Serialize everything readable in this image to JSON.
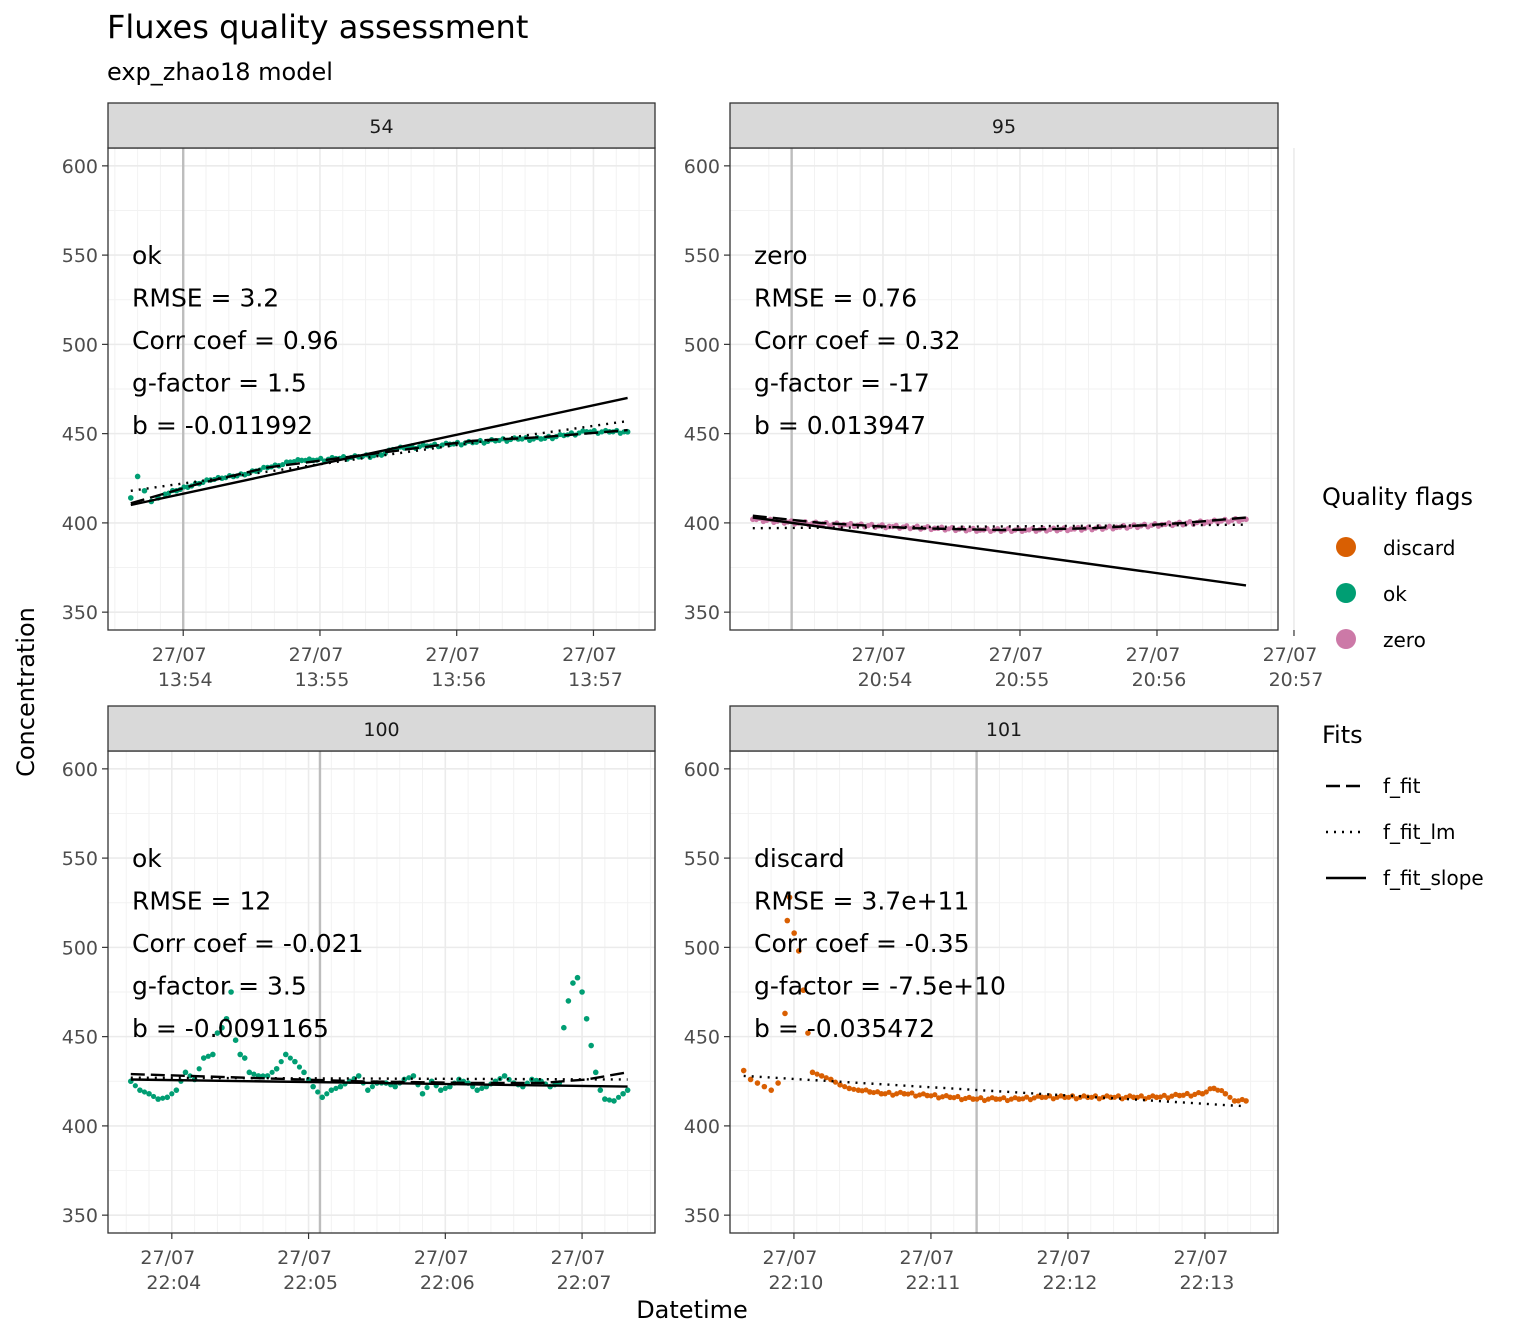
{
  "title": "Fluxes quality assessment",
  "subtitle": "exp_zhao18 model",
  "colors": {
    "discard": "#D95F02",
    "ok": "#009E73",
    "zero": "#CC79A7"
  },
  "legend": {
    "quality_title": "Quality flags",
    "quality_items": [
      "discard",
      "ok",
      "zero"
    ],
    "fits_title": "Fits",
    "fits_items": [
      {
        "label": "f_fit",
        "style": "dashed"
      },
      {
        "label": "f_fit_lm",
        "style": "dotted"
      },
      {
        "label": "f_fit_slope",
        "style": "solid"
      }
    ]
  },
  "chart_data": {
    "type": "scatter",
    "title": "Fluxes quality assessment",
    "subtitle": "exp_zhao18 model",
    "xlabel": "Datetime",
    "ylabel": "Concentration",
    "ylim": [
      340,
      610
    ],
    "yticks": [
      350,
      400,
      450,
      500,
      550,
      600
    ],
    "grid": true,
    "legend_position": "right",
    "panels": [
      {
        "strip": "54",
        "flag": "ok",
        "stats": [
          "ok",
          "RMSE = 3.2",
          "Corr coef = 0.96",
          "g-factor = 1.5",
          "b = -0.011992"
        ],
        "xlim": [
          "13:53:27",
          "13:57:27"
        ],
        "x_ticks": [
          [
            "27/07",
            "13:54"
          ],
          [
            "27/07",
            "13:55"
          ],
          [
            "27/07",
            "13:56"
          ],
          [
            "27/07",
            "13:57"
          ]
        ],
        "x_tick_times": [
          "13:54:00",
          "13:55:00",
          "13:56:00",
          "13:57:00"
        ],
        "start_marker": "13:54:00",
        "x_start": "13:53:37",
        "x_end": "13:57:15",
        "points": [
          [
            0,
            414
          ],
          [
            3,
            426
          ],
          [
            6,
            418
          ],
          [
            9,
            412
          ],
          [
            12,
            414
          ],
          [
            15,
            416
          ],
          [
            20,
            418
          ],
          [
            25,
            420
          ],
          [
            30,
            422
          ],
          [
            35,
            424
          ],
          [
            40,
            425
          ],
          [
            45,
            426
          ],
          [
            50,
            427
          ],
          [
            55,
            429
          ],
          [
            60,
            431
          ],
          [
            65,
            432
          ],
          [
            70,
            434
          ],
          [
            75,
            435
          ],
          [
            80,
            435
          ],
          [
            90,
            436
          ],
          [
            100,
            437
          ],
          [
            110,
            438
          ],
          [
            115,
            441
          ],
          [
            120,
            442
          ],
          [
            130,
            443
          ],
          [
            140,
            444
          ],
          [
            150,
            445
          ],
          [
            160,
            446
          ],
          [
            170,
            447
          ],
          [
            180,
            447
          ],
          [
            190,
            449
          ],
          [
            200,
            451
          ],
          [
            210,
            451
          ],
          [
            218,
            451
          ]
        ],
        "f_fit": [
          [
            0,
            411
          ],
          [
            30,
            422
          ],
          [
            60,
            431
          ],
          [
            90,
            436
          ],
          [
            120,
            441
          ],
          [
            150,
            446
          ],
          [
            180,
            448
          ],
          [
            218,
            452
          ]
        ],
        "f_fit_lm": [
          [
            0,
            418
          ],
          [
            218,
            457
          ]
        ],
        "f_fit_slope": [
          [
            0,
            410
          ],
          [
            218,
            470
          ]
        ]
      },
      {
        "strip": "95",
        "flag": "zero",
        "stats": [
          "zero",
          "RMSE = 0.76",
          "Corr coef = 0.32",
          "g-factor = -17",
          "b = 0.013947"
        ],
        "xlim": [
          "20:52:53",
          "20:56:53"
        ],
        "x_ticks": [
          [
            "27/07",
            "20:54"
          ],
          [
            "27/07",
            "20:55"
          ],
          [
            "27/07",
            "20:56"
          ],
          [
            "27/07",
            "20:57"
          ]
        ],
        "x_tick_times": [
          "20:54:00",
          "20:55:00",
          "20:56:00",
          "20:57:00"
        ],
        "start_marker": "20:53:20",
        "x_start": "20:53:03",
        "x_end": "20:56:40",
        "points": [
          [
            0,
            402
          ],
          [
            20,
            400
          ],
          [
            40,
            399
          ],
          [
            60,
            398
          ],
          [
            80,
            397
          ],
          [
            100,
            396
          ],
          [
            120,
            396
          ],
          [
            140,
            396.5
          ],
          [
            160,
            397.5
          ],
          [
            180,
            399
          ],
          [
            200,
            400.5
          ],
          [
            217,
            402
          ]
        ],
        "f_fit": [
          [
            0,
            404
          ],
          [
            30,
            400
          ],
          [
            70,
            397
          ],
          [
            110,
            396
          ],
          [
            150,
            397
          ],
          [
            190,
            400
          ],
          [
            217,
            403
          ]
        ],
        "f_fit_lm": [
          [
            0,
            397
          ],
          [
            217,
            399
          ]
        ],
        "f_fit_slope": [
          [
            0,
            403
          ],
          [
            217,
            365
          ]
        ]
      },
      {
        "strip": "100",
        "flag": "ok",
        "stats": [
          "ok",
          "RMSE = 12",
          "Corr coef = -0.021",
          "g-factor = 3.5",
          "b = -0.0091165"
        ],
        "xlim": [
          "22:03:32",
          "22:07:32"
        ],
        "x_ticks": [
          [
            "27/07",
            "22:04"
          ],
          [
            "27/07",
            "22:05"
          ],
          [
            "27/07",
            "22:06"
          ],
          [
            "27/07",
            "22:07"
          ]
        ],
        "x_tick_times": [
          "22:04:00",
          "22:05:00",
          "22:06:00",
          "22:07:00"
        ],
        "start_marker": "22:05:05",
        "x_start": "22:03:42",
        "x_end": "22:07:20",
        "points": [
          [
            0,
            425
          ],
          [
            4,
            420
          ],
          [
            8,
            418
          ],
          [
            12,
            415
          ],
          [
            16,
            416
          ],
          [
            20,
            420
          ],
          [
            24,
            430
          ],
          [
            28,
            426
          ],
          [
            32,
            438
          ],
          [
            36,
            440
          ],
          [
            38,
            452
          ],
          [
            40,
            455
          ],
          [
            42,
            460
          ],
          [
            44,
            475
          ],
          [
            46,
            448
          ],
          [
            48,
            440
          ],
          [
            50,
            438
          ],
          [
            52,
            430
          ],
          [
            56,
            428
          ],
          [
            60,
            428
          ],
          [
            64,
            432
          ],
          [
            68,
            440
          ],
          [
            72,
            436
          ],
          [
            76,
            430
          ],
          [
            80,
            422
          ],
          [
            84,
            416
          ],
          [
            88,
            420
          ],
          [
            92,
            422
          ],
          [
            96,
            425
          ],
          [
            100,
            428
          ],
          [
            104,
            420
          ],
          [
            108,
            424
          ],
          [
            112,
            424
          ],
          [
            116,
            422
          ],
          [
            120,
            426
          ],
          [
            124,
            428
          ],
          [
            128,
            418
          ],
          [
            132,
            425
          ],
          [
            136,
            420
          ],
          [
            140,
            422
          ],
          [
            144,
            426
          ],
          [
            148,
            424
          ],
          [
            152,
            420
          ],
          [
            156,
            422
          ],
          [
            160,
            425
          ],
          [
            164,
            428
          ],
          [
            168,
            424
          ],
          [
            172,
            422
          ],
          [
            176,
            426
          ],
          [
            180,
            425
          ],
          [
            184,
            422
          ],
          [
            188,
            424
          ],
          [
            190,
            455
          ],
          [
            192,
            470
          ],
          [
            194,
            480
          ],
          [
            196,
            483
          ],
          [
            198,
            475
          ],
          [
            200,
            460
          ],
          [
            202,
            445
          ],
          [
            204,
            430
          ],
          [
            206,
            420
          ],
          [
            208,
            415
          ],
          [
            212,
            414
          ],
          [
            216,
            418
          ],
          [
            218,
            420
          ]
        ],
        "f_fit": [
          [
            0,
            429
          ],
          [
            50,
            427
          ],
          [
            100,
            425
          ],
          [
            150,
            424
          ],
          [
            180,
            424
          ],
          [
            200,
            426
          ],
          [
            218,
            430
          ]
        ],
        "f_fit_lm": [
          [
            0,
            427
          ],
          [
            218,
            426
          ]
        ],
        "f_fit_slope": [
          [
            0,
            426
          ],
          [
            218,
            422
          ]
        ]
      },
      {
        "strip": "101",
        "flag": "discard",
        "stats": [
          "discard",
          "RMSE = 3.7e+11",
          "Corr coef = -0.35",
          "g-factor = -7.5e+10",
          "b = -0.035472"
        ],
        "xlim": [
          "22:09:32",
          "22:13:32"
        ],
        "x_ticks": [
          [
            "27/07",
            "22:10"
          ],
          [
            "27/07",
            "22:11"
          ],
          [
            "27/07",
            "22:12"
          ],
          [
            "27/07",
            "22:13"
          ]
        ],
        "x_tick_times": [
          "22:10:00",
          "22:11:00",
          "22:12:00",
          "22:13:00"
        ],
        "start_marker": "22:11:20",
        "x_start": "22:09:38",
        "x_end": "22:13:17",
        "points": [
          [
            0,
            431
          ],
          [
            3,
            426
          ],
          [
            6,
            424
          ],
          [
            9,
            422
          ],
          [
            12,
            420
          ],
          [
            15,
            424
          ],
          [
            18,
            463
          ],
          [
            19,
            515
          ],
          [
            20,
            528
          ],
          [
            22,
            508
          ],
          [
            24,
            498
          ],
          [
            26,
            476
          ],
          [
            28,
            452
          ],
          [
            30,
            430
          ],
          [
            34,
            428
          ],
          [
            38,
            426
          ],
          [
            42,
            423
          ],
          [
            46,
            421
          ],
          [
            50,
            420
          ],
          [
            55,
            419
          ],
          [
            60,
            418
          ],
          [
            70,
            418
          ],
          [
            80,
            417
          ],
          [
            90,
            416
          ],
          [
            100,
            415
          ],
          [
            110,
            415
          ],
          [
            120,
            415
          ],
          [
            130,
            416
          ],
          [
            140,
            416
          ],
          [
            150,
            416
          ],
          [
            160,
            416
          ],
          [
            170,
            416
          ],
          [
            180,
            416
          ],
          [
            190,
            417
          ],
          [
            200,
            418
          ],
          [
            205,
            421
          ],
          [
            210,
            418
          ],
          [
            214,
            414
          ],
          [
            219,
            414
          ]
        ],
        "f_fit": [],
        "f_fit_lm": [
          [
            0,
            428
          ],
          [
            219,
            411
          ]
        ],
        "f_fit_slope": []
      }
    ]
  }
}
